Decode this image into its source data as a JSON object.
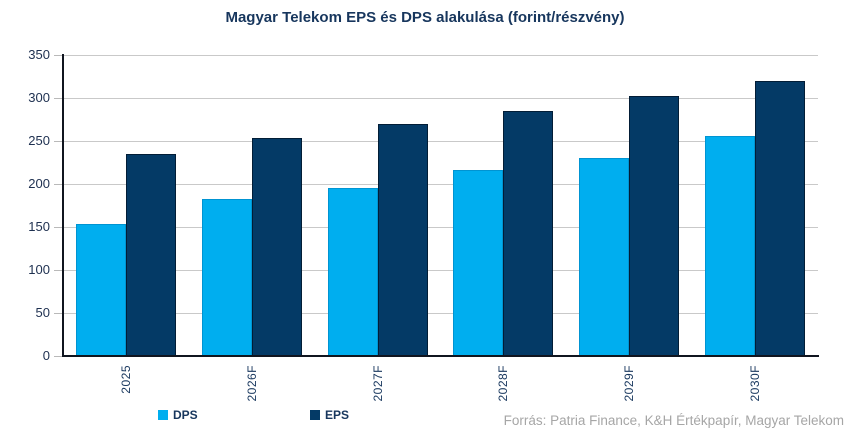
{
  "title": "Magyar Telekom EPS és DPS alakulása (forint/részvény)",
  "source": "Forrás: Patria Finance, K&H Értékpapír, Magyar Telekom",
  "colors": {
    "dps": "#00AEEF",
    "eps": "#043A66",
    "title_text": "#17365D",
    "axis_label_text": "#1E3050",
    "gridline": "#C9C9C9",
    "axis_line": "#10151F",
    "source_text": "#A6A6A6"
  },
  "legend": [
    {
      "label": "DPS",
      "color": "#00AEEF"
    },
    {
      "label": "EPS",
      "color": "#043A66"
    }
  ],
  "chart_data": {
    "type": "bar",
    "title": "Magyar Telekom EPS és DPS alakulása (forint/részvény)",
    "categories": [
      "2025",
      "2026F",
      "2027F",
      "2028F",
      "2029F",
      "2030F"
    ],
    "series": [
      {
        "name": "DPS",
        "color": "#00AEEF",
        "values": [
          154,
          183,
          195,
          216,
          230,
          256
        ]
      },
      {
        "name": "EPS",
        "color": "#043A66",
        "values": [
          235,
          253,
          270,
          285,
          302,
          320
        ]
      }
    ],
    "xlabel": "",
    "ylabel": "",
    "ylim": [
      0,
      350
    ],
    "yticks": [
      0,
      50,
      100,
      150,
      200,
      250,
      300,
      350
    ],
    "grid": true,
    "legend_position": "bottom",
    "x_tick_rotation": 90
  }
}
